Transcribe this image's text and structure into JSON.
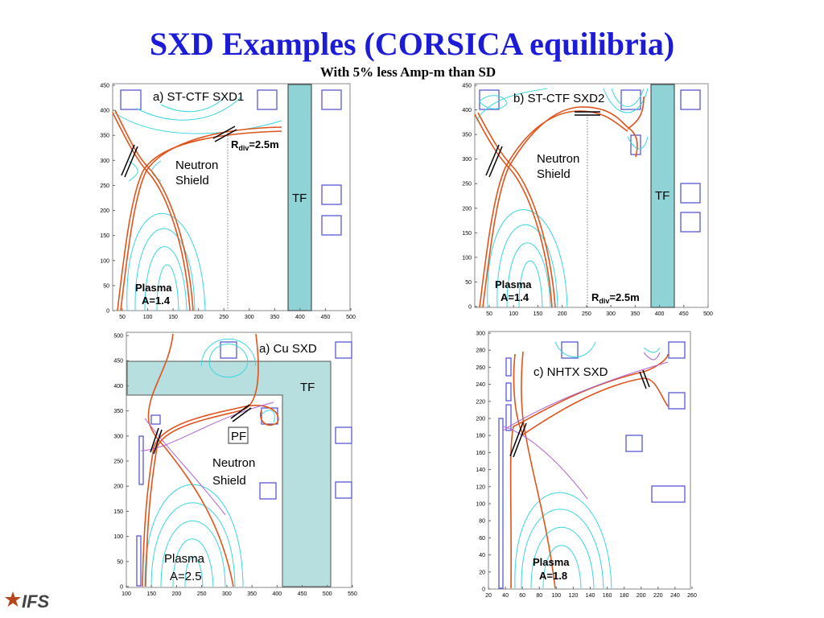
{
  "header": {
    "title": "SXD Examples (CORSICA equilibria)",
    "subtitle": "With 5% less Amp-m than SD"
  },
  "panels": [
    {
      "label": "a) ST-CTF SXD1",
      "shield": [
        "Neutron",
        "Shield"
      ],
      "tf": "TF",
      "plasma": [
        "Plasma",
        "A=1.4"
      ],
      "rdiv": {
        "main": "R",
        "sub": "div",
        "rest": "=2.5m"
      },
      "xticks": [
        50,
        100,
        150,
        200,
        250,
        300,
        350,
        400,
        450,
        500
      ],
      "yticks": [
        0,
        50,
        100,
        150,
        200,
        250,
        300,
        350,
        400,
        450
      ]
    },
    {
      "label": "b) ST-CTF SXD2",
      "shield": [
        "Neutron",
        "Shield"
      ],
      "tf": "TF",
      "plasma": [
        "Plasma",
        "A=1.4"
      ],
      "rdiv": {
        "main": "R",
        "sub": "div",
        "rest": "=2.5m"
      },
      "xticks": [
        50,
        100,
        150,
        200,
        250,
        300,
        350,
        400,
        450,
        500
      ],
      "yticks": [
        0,
        50,
        100,
        150,
        200,
        250,
        300,
        350,
        400,
        450
      ]
    },
    {
      "label": "a) Cu SXD",
      "shield": [
        "Neutron",
        "Shield"
      ],
      "tf": "TF",
      "pf": "PF",
      "plasma": [
        "Plasma",
        "A=2.5"
      ],
      "xticks": [
        100,
        150,
        200,
        250,
        300,
        350,
        400,
        450,
        500,
        550
      ],
      "yticks": [
        0,
        50,
        100,
        150,
        200,
        250,
        300,
        350,
        400,
        450,
        500
      ]
    },
    {
      "label": "c) NHTX SXD",
      "plasma": [
        "Plasma",
        "A=1.8"
      ],
      "xticks": [
        20,
        40,
        60,
        80,
        100,
        120,
        140,
        160,
        180,
        200,
        220,
        240,
        260
      ],
      "yticks": [
        0,
        20,
        40,
        60,
        80,
        100,
        120,
        140,
        160,
        180,
        200,
        220,
        240,
        260,
        280,
        300
      ]
    }
  ],
  "logo": "IFS"
}
